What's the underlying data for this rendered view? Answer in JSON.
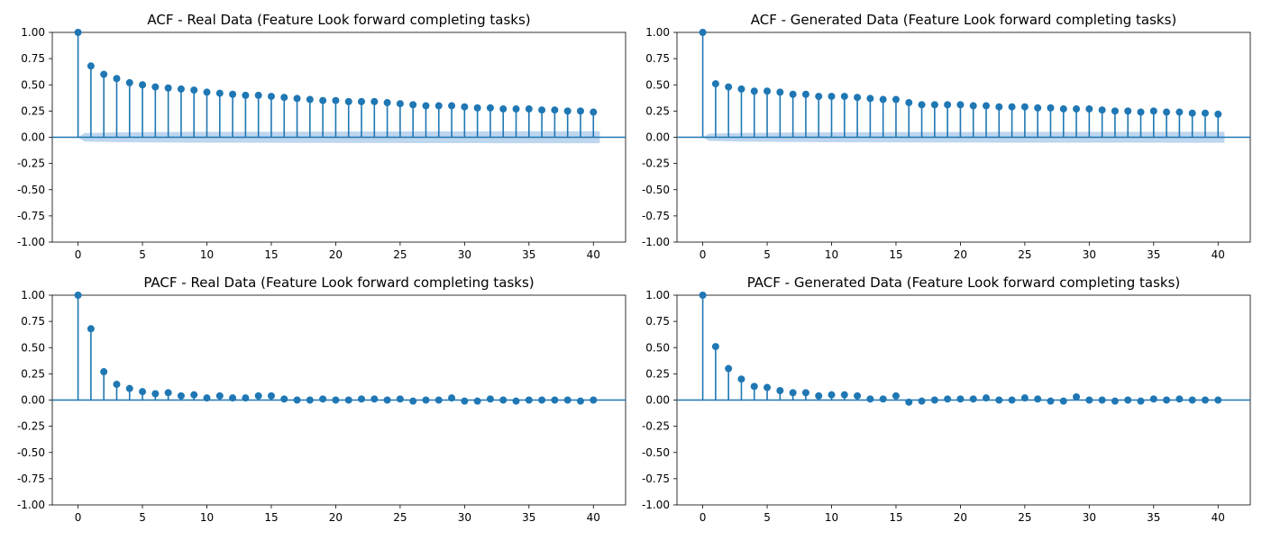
{
  "chart_data": [
    {
      "type": "stem",
      "title": "ACF - Real Data (Feature Look forward completing tasks)",
      "ylim": [
        -1.0,
        1.0
      ],
      "xlim": [
        -2,
        42.5
      ],
      "xticks": [
        0,
        5,
        10,
        15,
        20,
        25,
        30,
        35,
        40
      ],
      "yticks": [
        "-1.00",
        "-0.75",
        "-0.50",
        "-0.25",
        "0.00",
        "0.25",
        "0.50",
        "0.75",
        "1.00"
      ],
      "color": "#1f77b4",
      "confidence_band_color": "#a8c8e8",
      "lags": [
        0,
        1,
        2,
        3,
        4,
        5,
        6,
        7,
        8,
        9,
        10,
        11,
        12,
        13,
        14,
        15,
        16,
        17,
        18,
        19,
        20,
        21,
        22,
        23,
        24,
        25,
        26,
        27,
        28,
        29,
        30,
        31,
        32,
        33,
        34,
        35,
        36,
        37,
        38,
        39,
        40
      ],
      "values": [
        1.0,
        0.68,
        0.6,
        0.56,
        0.52,
        0.5,
        0.48,
        0.47,
        0.46,
        0.45,
        0.43,
        0.42,
        0.41,
        0.4,
        0.4,
        0.39,
        0.38,
        0.37,
        0.36,
        0.35,
        0.35,
        0.34,
        0.34,
        0.34,
        0.33,
        0.32,
        0.31,
        0.3,
        0.3,
        0.3,
        0.29,
        0.28,
        0.28,
        0.27,
        0.27,
        0.27,
        0.26,
        0.26,
        0.25,
        0.25,
        0.24
      ],
      "confidence_upper": [
        0.0,
        0.04,
        0.043,
        0.045,
        0.047,
        0.048,
        0.049,
        0.05,
        0.05,
        0.051,
        0.051,
        0.052,
        0.052,
        0.052,
        0.053,
        0.053,
        0.053,
        0.054,
        0.054,
        0.054,
        0.054,
        0.055,
        0.055,
        0.055,
        0.055,
        0.055,
        0.056,
        0.056,
        0.056,
        0.056,
        0.056,
        0.056,
        0.056,
        0.057,
        0.057,
        0.057,
        0.057,
        0.057,
        0.057,
        0.057,
        0.057
      ]
    },
    {
      "type": "stem",
      "title": "ACF - Generated Data (Feature Look forward completing tasks)",
      "ylim": [
        -1.0,
        1.0
      ],
      "xlim": [
        -2,
        42.5
      ],
      "xticks": [
        0,
        5,
        10,
        15,
        20,
        25,
        30,
        35,
        40
      ],
      "yticks": [
        "-1.00",
        "-0.75",
        "-0.50",
        "-0.25",
        "0.00",
        "0.25",
        "0.50",
        "0.75",
        "1.00"
      ],
      "color": "#1f77b4",
      "confidence_band_color": "#a8c8e8",
      "lags": [
        0,
        1,
        2,
        3,
        4,
        5,
        6,
        7,
        8,
        9,
        10,
        11,
        12,
        13,
        14,
        15,
        16,
        17,
        18,
        19,
        20,
        21,
        22,
        23,
        24,
        25,
        26,
        27,
        28,
        29,
        30,
        31,
        32,
        33,
        34,
        35,
        36,
        37,
        38,
        39,
        40
      ],
      "values": [
        1.0,
        0.51,
        0.48,
        0.46,
        0.44,
        0.44,
        0.43,
        0.41,
        0.41,
        0.39,
        0.39,
        0.39,
        0.38,
        0.37,
        0.36,
        0.36,
        0.33,
        0.31,
        0.31,
        0.31,
        0.31,
        0.3,
        0.3,
        0.29,
        0.29,
        0.29,
        0.28,
        0.28,
        0.27,
        0.27,
        0.27,
        0.26,
        0.25,
        0.25,
        0.24,
        0.25,
        0.24,
        0.24,
        0.23,
        0.23,
        0.22
      ],
      "confidence_upper": [
        0.0,
        0.035,
        0.038,
        0.04,
        0.042,
        0.043,
        0.044,
        0.045,
        0.045,
        0.046,
        0.047,
        0.047,
        0.048,
        0.048,
        0.048,
        0.049,
        0.049,
        0.049,
        0.05,
        0.05,
        0.05,
        0.05,
        0.05,
        0.051,
        0.051,
        0.051,
        0.051,
        0.051,
        0.051,
        0.052,
        0.052,
        0.052,
        0.052,
        0.052,
        0.052,
        0.052,
        0.052,
        0.053,
        0.053,
        0.053,
        0.053
      ]
    },
    {
      "type": "stem",
      "title": "PACF - Real Data (Feature Look forward completing tasks)",
      "ylim": [
        -1.0,
        1.0
      ],
      "xlim": [
        -2,
        42.5
      ],
      "xticks": [
        0,
        5,
        10,
        15,
        20,
        25,
        30,
        35,
        40
      ],
      "yticks": [
        "-1.00",
        "-0.75",
        "-0.50",
        "-0.25",
        "0.00",
        "0.25",
        "0.50",
        "0.75",
        "1.00"
      ],
      "color": "#1f77b4",
      "lags": [
        0,
        1,
        2,
        3,
        4,
        5,
        6,
        7,
        8,
        9,
        10,
        11,
        12,
        13,
        14,
        15,
        16,
        17,
        18,
        19,
        20,
        21,
        22,
        23,
        24,
        25,
        26,
        27,
        28,
        29,
        30,
        31,
        32,
        33,
        34,
        35,
        36,
        37,
        38,
        39,
        40
      ],
      "values": [
        1.0,
        0.68,
        0.27,
        0.15,
        0.11,
        0.08,
        0.06,
        0.07,
        0.04,
        0.05,
        0.02,
        0.04,
        0.02,
        0.02,
        0.04,
        0.04,
        0.01,
        0.0,
        0.0,
        0.01,
        0.0,
        0.0,
        0.01,
        0.01,
        0.0,
        0.01,
        -0.01,
        0.0,
        0.0,
        0.02,
        -0.01,
        -0.01,
        0.01,
        0.0,
        -0.01,
        0.0,
        0.0,
        0.0,
        0.0,
        -0.01,
        0.0
      ]
    },
    {
      "type": "stem",
      "title": "PACF - Generated Data (Feature Look forward completing tasks)",
      "ylim": [
        -1.0,
        1.0
      ],
      "xlim": [
        -2,
        42.5
      ],
      "xticks": [
        0,
        5,
        10,
        15,
        20,
        25,
        30,
        35,
        40
      ],
      "yticks": [
        "-1.00",
        "-0.75",
        "-0.50",
        "-0.25",
        "0.00",
        "0.25",
        "0.50",
        "0.75",
        "1.00"
      ],
      "color": "#1f77b4",
      "lags": [
        0,
        1,
        2,
        3,
        4,
        5,
        6,
        7,
        8,
        9,
        10,
        11,
        12,
        13,
        14,
        15,
        16,
        17,
        18,
        19,
        20,
        21,
        22,
        23,
        24,
        25,
        26,
        27,
        28,
        29,
        30,
        31,
        32,
        33,
        34,
        35,
        36,
        37,
        38,
        39,
        40
      ],
      "values": [
        1.0,
        0.51,
        0.3,
        0.2,
        0.13,
        0.12,
        0.09,
        0.07,
        0.07,
        0.04,
        0.05,
        0.05,
        0.04,
        0.01,
        0.01,
        0.04,
        -0.02,
        -0.01,
        0.0,
        0.01,
        0.01,
        0.01,
        0.02,
        0.0,
        0.0,
        0.02,
        0.01,
        -0.01,
        -0.01,
        0.03,
        0.0,
        0.0,
        -0.01,
        0.0,
        -0.01,
        0.01,
        0.0,
        0.01,
        0.0,
        0.0,
        0.0
      ]
    }
  ]
}
